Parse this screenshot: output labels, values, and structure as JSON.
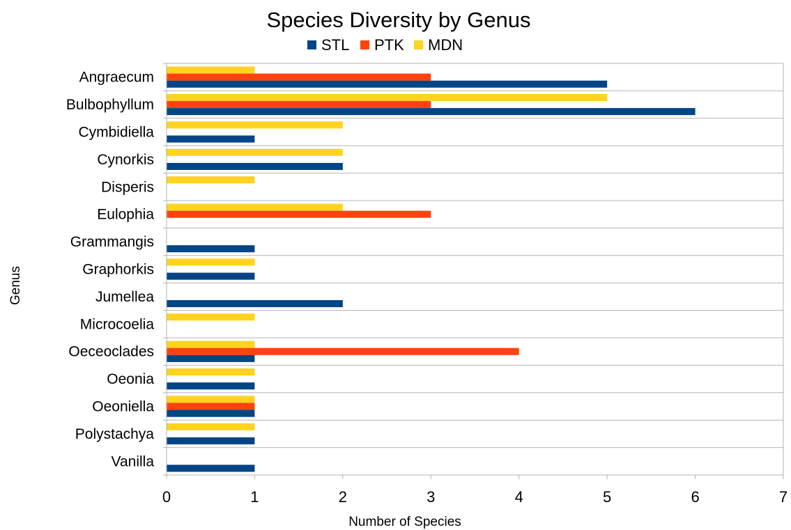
{
  "chart_data": {
    "type": "bar",
    "orientation": "horizontal",
    "title": "Species Diversity by Genus",
    "xlabel": "Number of Species",
    "ylabel": "Genus",
    "xlim": [
      0,
      7
    ],
    "x_ticks": [
      "0",
      "1",
      "2",
      "3",
      "4",
      "5",
      "6",
      "7"
    ],
    "grid": "horizontal category separators",
    "legend_position": "top",
    "categories": [
      "Angraecum",
      "Bulbophyllum",
      "Cymbidiella",
      "Cynorkis",
      "Disperis",
      "Eulophia",
      "Grammangis",
      "Graphorkis",
      "Jumellea",
      "Microcoelia",
      "Oeceoclades",
      "Oeonia",
      "Oeoniella",
      "Polystachya",
      "Vanilla"
    ],
    "series": [
      {
        "name": "STL",
        "color": "#004586",
        "values": [
          5,
          6,
          1,
          2,
          0,
          0,
          1,
          1,
          2,
          0,
          1,
          1,
          1,
          1,
          1
        ]
      },
      {
        "name": "PTK",
        "color": "#ff420e",
        "values": [
          3,
          3,
          0,
          0,
          0,
          3,
          0,
          0,
          0,
          0,
          4,
          0,
          1,
          0,
          0
        ]
      },
      {
        "name": "MDN",
        "color": "#ffd320",
        "values": [
          1,
          5,
          2,
          2,
          1,
          2,
          0,
          1,
          0,
          1,
          1,
          1,
          1,
          1,
          0
        ]
      }
    ]
  }
}
